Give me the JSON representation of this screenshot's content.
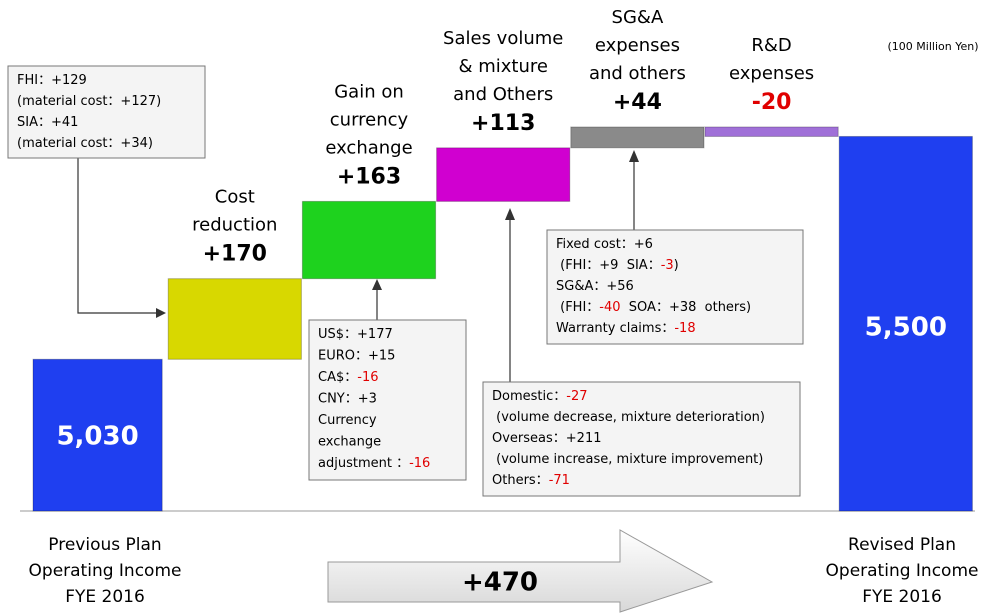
{
  "chart_data": {
    "type": "waterfall",
    "unit_label": "(100 Million Yen)",
    "categories": [
      [
        "Previous Plan",
        "Operating Income",
        "FYE 2016"
      ],
      [
        "Cost",
        "reduction"
      ],
      [
        "Gain on",
        "currency",
        "exchange"
      ],
      [
        "Sales volume",
        "& mixture",
        "and Others"
      ],
      [
        "SG&A",
        "expenses",
        "and others"
      ],
      [
        "R&D",
        "expenses"
      ],
      [
        "Revised Plan",
        "Operating Income",
        "FYE 2016"
      ]
    ],
    "values": [
      5030,
      170,
      163,
      113,
      44,
      -20,
      5500
    ],
    "value_labels": [
      "5,030",
      "+170",
      "+163",
      "+113",
      "+44",
      "-20",
      "5,500"
    ],
    "colors": [
      "#1f3ff0",
      "#d8d800",
      "#1ed21e",
      "#d000d0",
      "#8a8a8a",
      "#a070d8",
      "#1f3ff0"
    ],
    "label_colors": [
      "#ffffff",
      "#000000",
      "#000000",
      "#000000",
      "#000000",
      "#e00000",
      "#ffffff"
    ],
    "ylim": [
      4710,
      5560
    ],
    "total_change": "+470",
    "annotations": [
      {
        "lines": [
          [
            {
              "text": "FHI：+129"
            }
          ],
          [
            {
              "text": "(material cost：+127)"
            }
          ],
          [
            {
              "text": "SIA：+41"
            }
          ],
          [
            {
              "text": "(material cost：+34)"
            }
          ]
        ]
      },
      {
        "lines": [
          [
            {
              "text": "US$：+177"
            }
          ],
          [
            {
              "text": "EURO：+15"
            }
          ],
          [
            {
              "text": "CA$："
            },
            {
              "text": "-16",
              "color": "#e00000"
            }
          ],
          [
            {
              "text": "CNY：+3"
            }
          ],
          [
            {
              "text": "Currency"
            }
          ],
          [
            {
              "text": "exchange"
            }
          ],
          [
            {
              "text": "adjustment ："
            },
            {
              "text": "-16",
              "color": "#e00000"
            }
          ]
        ]
      },
      {
        "lines": [
          [
            {
              "text": "Fixed cost：+6"
            }
          ],
          [
            {
              "text": " (FHI：+9  SIA："
            },
            {
              "text": "-3",
              "color": "#e00000"
            },
            {
              "text": ")"
            }
          ],
          [
            {
              "text": "SG&A：+56"
            }
          ],
          [
            {
              "text": " (FHI："
            },
            {
              "text": "-40",
              "color": "#e00000"
            },
            {
              "text": "  SOA：+38  others)"
            }
          ],
          [
            {
              "text": "Warranty claims："
            },
            {
              "text": "-18",
              "color": "#e00000"
            }
          ]
        ]
      },
      {
        "lines": [
          [
            {
              "text": "Domestic："
            },
            {
              "text": "-27",
              "color": "#e00000"
            }
          ],
          [
            {
              "text": " (volume decrease, mixture deterioration)"
            }
          ],
          [
            {
              "text": "Overseas：+211"
            }
          ],
          [
            {
              "text": " (volume increase, mixture improvement)"
            }
          ],
          [
            {
              "text": "Others："
            },
            {
              "text": "-71",
              "color": "#e00000"
            }
          ]
        ]
      }
    ]
  }
}
